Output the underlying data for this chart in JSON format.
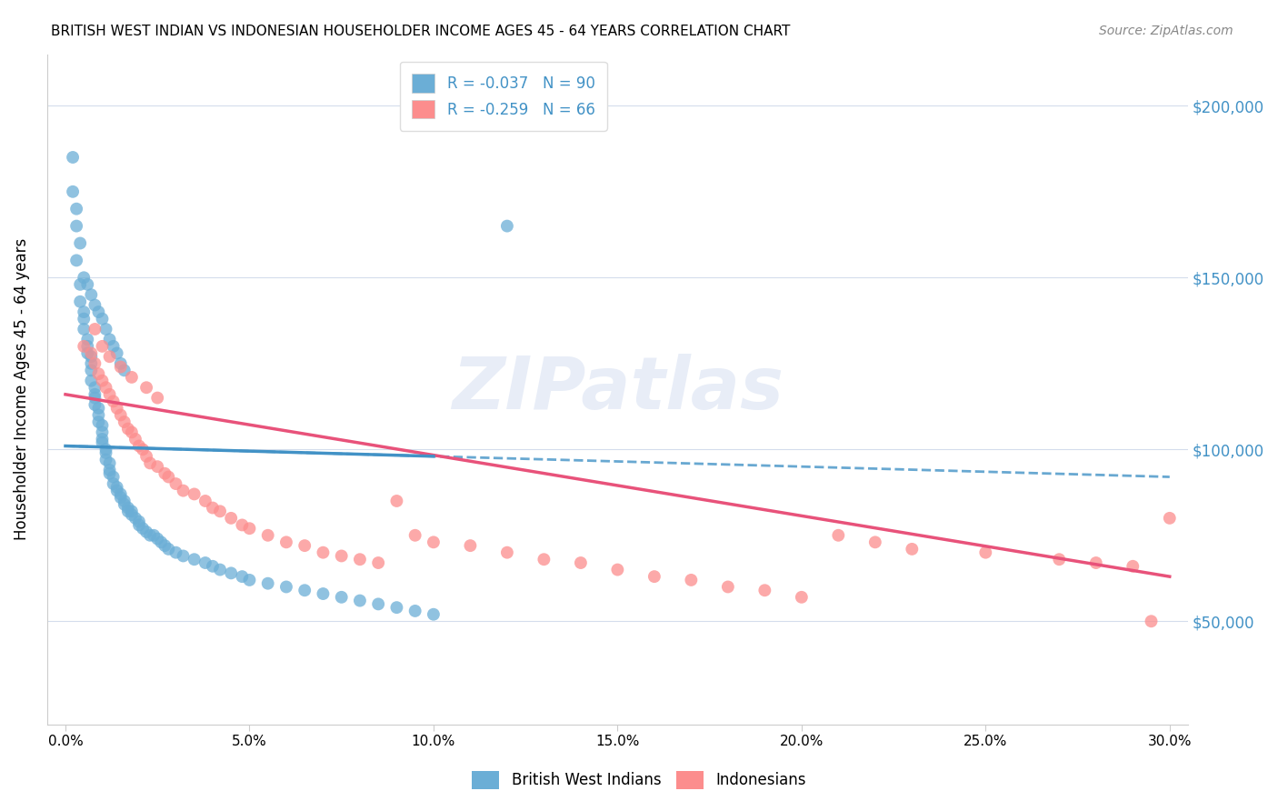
{
  "title": "BRITISH WEST INDIAN VS INDONESIAN HOUSEHOLDER INCOME AGES 45 - 64 YEARS CORRELATION CHART",
  "source": "Source: ZipAtlas.com",
  "ylabel": "Householder Income Ages 45 - 64 years",
  "xlabel_ticks": [
    "0.0%",
    "5.0%",
    "10.0%",
    "15.0%",
    "20.0%",
    "25.0%",
    "30.0%"
  ],
  "xlabel_vals": [
    0.0,
    0.05,
    0.1,
    0.15,
    0.2,
    0.25,
    0.3
  ],
  "ylim": [
    20000,
    215000
  ],
  "xlim": [
    -0.005,
    0.305
  ],
  "ytick_labels": [
    "$50,000",
    "$100,000",
    "$150,000",
    "$200,000"
  ],
  "ytick_vals": [
    50000,
    100000,
    150000,
    200000
  ],
  "blue_R": -0.037,
  "blue_N": 90,
  "pink_R": -0.259,
  "pink_N": 66,
  "blue_color": "#6baed6",
  "pink_color": "#fc8d8d",
  "blue_line_color": "#4292c6",
  "pink_line_color": "#e8527a",
  "legend_labels": [
    "British West Indians",
    "Indonesians"
  ],
  "blue_scatter_x": [
    0.002,
    0.003,
    0.003,
    0.004,
    0.004,
    0.005,
    0.005,
    0.005,
    0.006,
    0.006,
    0.006,
    0.007,
    0.007,
    0.007,
    0.007,
    0.008,
    0.008,
    0.008,
    0.008,
    0.009,
    0.009,
    0.009,
    0.01,
    0.01,
    0.01,
    0.01,
    0.011,
    0.011,
    0.011,
    0.012,
    0.012,
    0.012,
    0.013,
    0.013,
    0.014,
    0.014,
    0.015,
    0.015,
    0.016,
    0.016,
    0.017,
    0.017,
    0.018,
    0.018,
    0.019,
    0.02,
    0.02,
    0.021,
    0.022,
    0.023,
    0.024,
    0.025,
    0.026,
    0.027,
    0.028,
    0.03,
    0.032,
    0.035,
    0.038,
    0.04,
    0.042,
    0.045,
    0.048,
    0.05,
    0.055,
    0.06,
    0.065,
    0.07,
    0.075,
    0.08,
    0.085,
    0.09,
    0.095,
    0.1,
    0.002,
    0.003,
    0.004,
    0.005,
    0.006,
    0.007,
    0.008,
    0.009,
    0.01,
    0.011,
    0.012,
    0.013,
    0.014,
    0.015,
    0.016,
    0.12
  ],
  "blue_scatter_y": [
    175000,
    165000,
    155000,
    148000,
    143000,
    140000,
    138000,
    135000,
    132000,
    130000,
    128000,
    127000,
    125000,
    123000,
    120000,
    118000,
    116000,
    115000,
    113000,
    112000,
    110000,
    108000,
    107000,
    105000,
    103000,
    102000,
    100000,
    99000,
    97000,
    96000,
    94000,
    93000,
    92000,
    90000,
    89000,
    88000,
    87000,
    86000,
    85000,
    84000,
    83000,
    82000,
    82000,
    81000,
    80000,
    79000,
    78000,
    77000,
    76000,
    75000,
    75000,
    74000,
    73000,
    72000,
    71000,
    70000,
    69000,
    68000,
    67000,
    66000,
    65000,
    64000,
    63000,
    62000,
    61000,
    60000,
    59000,
    58000,
    57000,
    56000,
    55000,
    54000,
    53000,
    52000,
    185000,
    170000,
    160000,
    150000,
    148000,
    145000,
    142000,
    140000,
    138000,
    135000,
    132000,
    130000,
    128000,
    125000,
    123000,
    165000
  ],
  "pink_scatter_x": [
    0.005,
    0.007,
    0.008,
    0.009,
    0.01,
    0.011,
    0.012,
    0.013,
    0.014,
    0.015,
    0.016,
    0.017,
    0.018,
    0.019,
    0.02,
    0.021,
    0.022,
    0.023,
    0.025,
    0.027,
    0.028,
    0.03,
    0.032,
    0.035,
    0.038,
    0.04,
    0.042,
    0.045,
    0.048,
    0.05,
    0.055,
    0.06,
    0.065,
    0.07,
    0.075,
    0.08,
    0.085,
    0.09,
    0.095,
    0.1,
    0.11,
    0.12,
    0.13,
    0.14,
    0.15,
    0.16,
    0.17,
    0.18,
    0.19,
    0.2,
    0.21,
    0.22,
    0.23,
    0.25,
    0.27,
    0.28,
    0.29,
    0.3,
    0.008,
    0.01,
    0.012,
    0.015,
    0.018,
    0.022,
    0.025,
    0.295
  ],
  "pink_scatter_y": [
    130000,
    128000,
    125000,
    122000,
    120000,
    118000,
    116000,
    114000,
    112000,
    110000,
    108000,
    106000,
    105000,
    103000,
    101000,
    100000,
    98000,
    96000,
    95000,
    93000,
    92000,
    90000,
    88000,
    87000,
    85000,
    83000,
    82000,
    80000,
    78000,
    77000,
    75000,
    73000,
    72000,
    70000,
    69000,
    68000,
    67000,
    85000,
    75000,
    73000,
    72000,
    70000,
    68000,
    67000,
    65000,
    63000,
    62000,
    60000,
    59000,
    57000,
    75000,
    73000,
    71000,
    70000,
    68000,
    67000,
    66000,
    80000,
    135000,
    130000,
    127000,
    124000,
    121000,
    118000,
    115000,
    50000
  ]
}
